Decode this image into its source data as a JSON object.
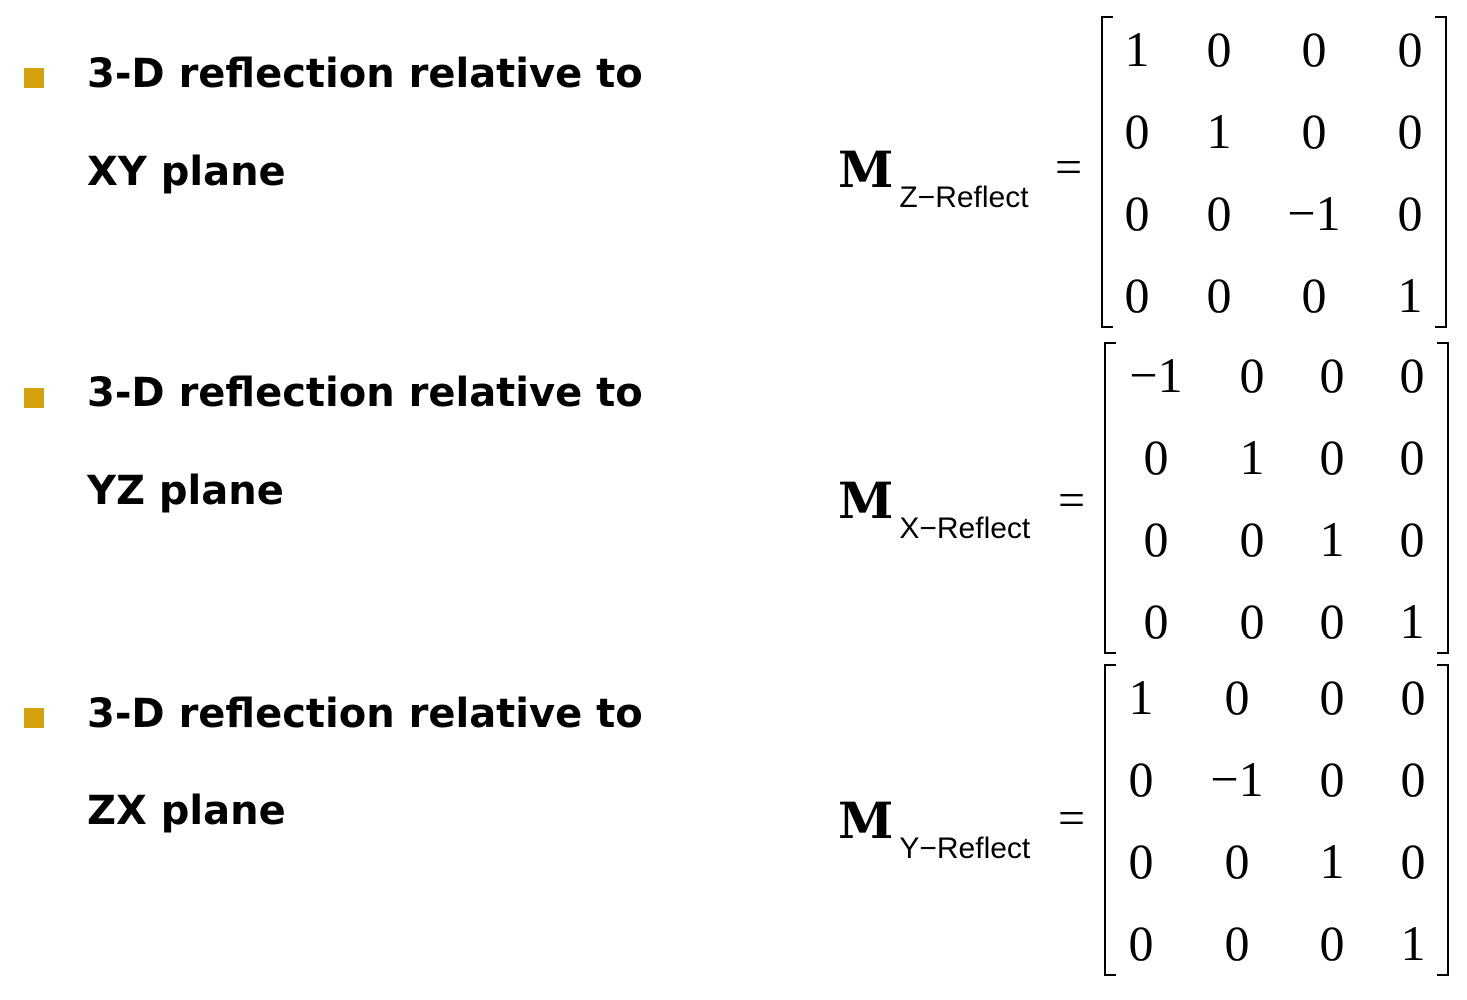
{
  "bullets": [
    {
      "line1": "3-D reflection relative to",
      "line2": "XY plane",
      "matrix_name": "M",
      "matrix_subscript": "Z−Reflect",
      "equals": "=",
      "rows": [
        [
          "1",
          "0",
          "0",
          "0"
        ],
        [
          "0",
          "1",
          "0",
          "0"
        ],
        [
          "0",
          "0",
          "−1",
          "0"
        ],
        [
          "0",
          "0",
          "0",
          "1"
        ]
      ]
    },
    {
      "line1": "3-D reflection relative to",
      "line2": "YZ plane",
      "matrix_name": "M",
      "matrix_subscript": "X−Reflect",
      "equals": "=",
      "rows": [
        [
          "−1",
          "0",
          "0",
          "0"
        ],
        [
          "0",
          "1",
          "0",
          "0"
        ],
        [
          "0",
          "0",
          "1",
          "0"
        ],
        [
          "0",
          "0",
          "0",
          "1"
        ]
      ]
    },
    {
      "line1": "3-D reflection relative to",
      "line2": "ZX plane",
      "matrix_name": "M",
      "matrix_subscript": "Y−Reflect",
      "equals": "=",
      "rows": [
        [
          "1",
          "0",
          "0",
          "0"
        ],
        [
          "0",
          "−1",
          "0",
          "0"
        ],
        [
          "0",
          "0",
          "1",
          "0"
        ],
        [
          "0",
          "0",
          "0",
          "1"
        ]
      ]
    }
  ],
  "colors": {
    "bullet": "#d4a20f",
    "text": "#000000",
    "background": "#ffffff"
  }
}
